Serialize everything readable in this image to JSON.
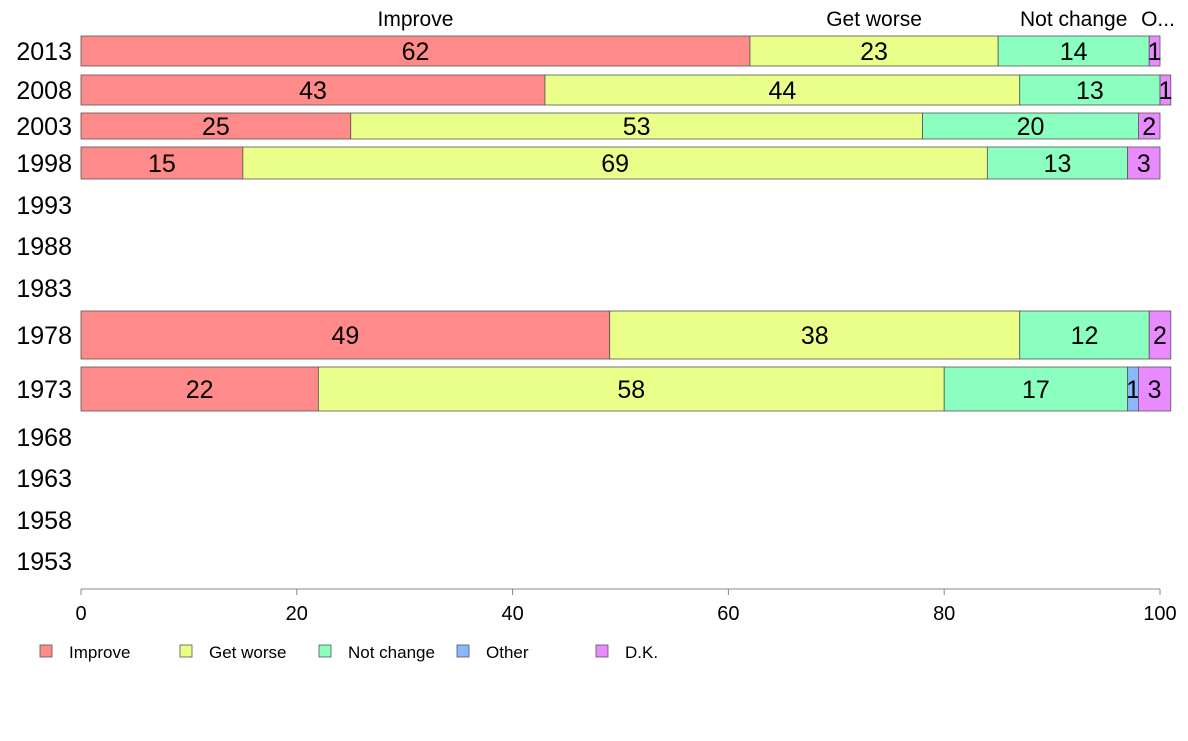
{
  "chart_data": {
    "type": "bar",
    "orientation": "horizontal",
    "stacked": true,
    "categories": [
      "2013",
      "2008",
      "2003",
      "1998",
      "1993",
      "1988",
      "1983",
      "1978",
      "1973",
      "1968",
      "1963",
      "1958",
      "1953"
    ],
    "series": [
      {
        "name": "Improve",
        "color": "#ff8a8a",
        "values": [
          62,
          43,
          25,
          15,
          null,
          null,
          null,
          49,
          22,
          null,
          null,
          null,
          null
        ]
      },
      {
        "name": "Get worse",
        "color": "#eaff8a",
        "values": [
          23,
          44,
          53,
          69,
          null,
          null,
          null,
          38,
          58,
          null,
          null,
          null,
          null
        ]
      },
      {
        "name": "Not change",
        "color": "#8affbf",
        "values": [
          14,
          13,
          20,
          13,
          null,
          null,
          null,
          12,
          17,
          null,
          null,
          null,
          null
        ]
      },
      {
        "name": "Other",
        "color": "#8ab8ff",
        "values": [
          0,
          0,
          0,
          0,
          null,
          null,
          null,
          0,
          1,
          null,
          null,
          null,
          null
        ]
      },
      {
        "name": "D.K.",
        "color": "#ea8aff",
        "values": [
          1,
          1,
          2,
          3,
          null,
          null,
          null,
          2,
          3,
          null,
          null,
          null,
          null
        ]
      }
    ],
    "data_labels": [
      [
        "62",
        "23",
        "14",
        "",
        "1"
      ],
      [
        "43",
        "44",
        "13",
        "",
        "1"
      ],
      [
        "25",
        "53",
        "20",
        "",
        "2"
      ],
      [
        "15",
        "69",
        "13",
        "",
        "3"
      ],
      null,
      null,
      null,
      [
        "49",
        "38",
        "12",
        "",
        "2"
      ],
      [
        "22",
        "58",
        "17",
        "1",
        "3"
      ],
      null,
      null,
      null,
      null
    ],
    "top_labels": [
      "Improve",
      "Get worse",
      "Not change",
      "O..."
    ],
    "xlim": [
      0,
      100
    ],
    "xticks": [
      "0",
      "20",
      "40",
      "60",
      "80",
      "100"
    ],
    "grid": false,
    "legend": [
      "Improve",
      "Get worse",
      "Not change",
      "Other",
      "D.K."
    ],
    "legend_position": "bottom"
  }
}
